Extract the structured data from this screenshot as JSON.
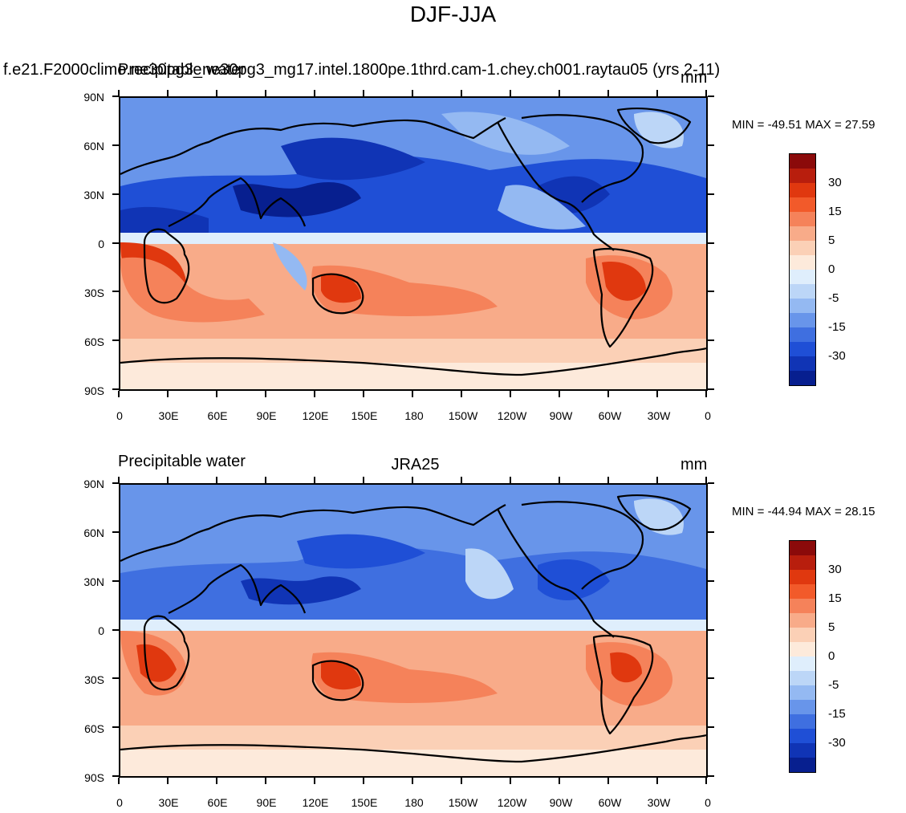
{
  "figure": {
    "title": "DJF-JJA"
  },
  "panels": [
    {
      "id": "top",
      "left_title": "",
      "case_title": "f.e21.F2000climo.ne30pg3_ne30pg3_mg17.intel.1800pe.1thrd.cam-1.chey.ch001.raytau05 (yrs 2-11)",
      "overlay_title": "Precipitable water",
      "right_title": "mm",
      "stats": "MIN = -49.51 MAX =  27.59"
    },
    {
      "id": "bottom",
      "left_title": "Precipitable water",
      "center_title": "JRA25",
      "right_title": "mm",
      "stats": "MIN = -44.94 MAX =  28.15"
    }
  ],
  "axes": {
    "lat_ticks": [
      "90N",
      "60N",
      "30N",
      "0",
      "30S",
      "60S",
      "90S"
    ],
    "lon_ticks": [
      "0",
      "30E",
      "60E",
      "90E",
      "120E",
      "150E",
      "180",
      "150W",
      "120W",
      "90W",
      "60W",
      "30W",
      "0"
    ]
  },
  "colorbar": {
    "colors": [
      "#8b0a0a",
      "#b81e0d",
      "#e0380f",
      "#f25a2a",
      "#f5825a",
      "#f8ab89",
      "#fbd0b6",
      "#fdeadb",
      "#dfeefc",
      "#bcd6f7",
      "#94b9f2",
      "#6895ea",
      "#3f6fe0",
      "#1f4fd6",
      "#1034b5",
      "#071f8f",
      "#00106b"
    ],
    "labels": [
      "30",
      "15",
      "5",
      "0",
      "-5",
      "-15",
      "-30"
    ]
  },
  "chart_data": {
    "type": "heatmap",
    "title": "DJF-JJA",
    "variable": "Precipitable water",
    "units": "mm",
    "x_range": [
      "0",
      "0"
    ],
    "y_range": [
      "90S",
      "90N"
    ],
    "panels": [
      {
        "name": "f.e21.F2000climo.ne30pg3_ne30pg3_mg17.intel.1800pe.1thrd.cam-1.chey.ch001.raytau05 (yrs 2-11)",
        "min": -49.51,
        "max": 27.59
      },
      {
        "name": "JRA25",
        "min": -44.94,
        "max": 28.15
      }
    ],
    "contour_levels": [
      -35,
      -30,
      -25,
      -20,
      -15,
      -10,
      -5,
      -2,
      0,
      2,
      5,
      10,
      15,
      20,
      25,
      30,
      35
    ]
  }
}
